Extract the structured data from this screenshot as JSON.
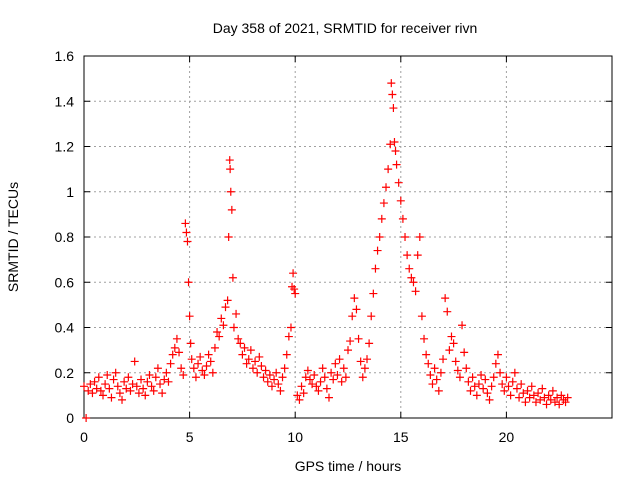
{
  "chart_data": {
    "type": "scatter",
    "title": "Day 358 of 2021, SRMTID for receiver rivn",
    "xlabel": "GPS time / hours",
    "ylabel": "SRMTID / TECUs",
    "xlim": [
      0,
      25
    ],
    "ylim": [
      0,
      1.6
    ],
    "xticks": [
      0,
      5,
      10,
      15,
      20
    ],
    "xtick_labels": [
      "0",
      "5",
      "10",
      "15",
      "20"
    ],
    "yticks": [
      0,
      0.2,
      0.4,
      0.6,
      0.8,
      1,
      1.2,
      1.4,
      1.6
    ],
    "ytick_labels": [
      "0",
      "0.2",
      "0.4",
      "0.6",
      "0.8",
      "1",
      "1.2",
      "1.4",
      "1.6"
    ],
    "grid": true,
    "marker": "+",
    "color": "#ff0000",
    "series": [
      {
        "name": "SRMTID",
        "points": [
          [
            0.0,
            0.14
          ],
          [
            0.1,
            0.0
          ],
          [
            0.2,
            0.12
          ],
          [
            0.3,
            0.15
          ],
          [
            0.4,
            0.11
          ],
          [
            0.5,
            0.16
          ],
          [
            0.6,
            0.13
          ],
          [
            0.7,
            0.18
          ],
          [
            0.8,
            0.12
          ],
          [
            0.9,
            0.1
          ],
          [
            1.0,
            0.15
          ],
          [
            1.1,
            0.19
          ],
          [
            1.2,
            0.13
          ],
          [
            1.3,
            0.09
          ],
          [
            1.4,
            0.17
          ],
          [
            1.5,
            0.2
          ],
          [
            1.6,
            0.14
          ],
          [
            1.7,
            0.11
          ],
          [
            1.8,
            0.08
          ],
          [
            1.9,
            0.16
          ],
          [
            2.0,
            0.13
          ],
          [
            2.1,
            0.18
          ],
          [
            2.2,
            0.12
          ],
          [
            2.3,
            0.15
          ],
          [
            2.4,
            0.25
          ],
          [
            2.5,
            0.14
          ],
          [
            2.6,
            0.11
          ],
          [
            2.7,
            0.17
          ],
          [
            2.8,
            0.13
          ],
          [
            2.9,
            0.1
          ],
          [
            3.0,
            0.16
          ],
          [
            3.1,
            0.19
          ],
          [
            3.2,
            0.14
          ],
          [
            3.3,
            0.12
          ],
          [
            3.4,
            0.18
          ],
          [
            3.5,
            0.22
          ],
          [
            3.6,
            0.15
          ],
          [
            3.7,
            0.11
          ],
          [
            3.8,
            0.17
          ],
          [
            3.9,
            0.2
          ],
          [
            4.0,
            0.16
          ],
          [
            4.1,
            0.24
          ],
          [
            4.2,
            0.28
          ],
          [
            4.3,
            0.31
          ],
          [
            4.4,
            0.35
          ],
          [
            4.5,
            0.29
          ],
          [
            4.6,
            0.22
          ],
          [
            4.7,
            0.19
          ],
          [
            4.8,
            0.86
          ],
          [
            4.85,
            0.82
          ],
          [
            4.9,
            0.78
          ],
          [
            4.95,
            0.6
          ],
          [
            5.0,
            0.45
          ],
          [
            5.05,
            0.33
          ],
          [
            5.1,
            0.26
          ],
          [
            5.2,
            0.22
          ],
          [
            5.3,
            0.18
          ],
          [
            5.4,
            0.24
          ],
          [
            5.5,
            0.27
          ],
          [
            5.6,
            0.21
          ],
          [
            5.7,
            0.19
          ],
          [
            5.8,
            0.23
          ],
          [
            5.9,
            0.28
          ],
          [
            6.0,
            0.25
          ],
          [
            6.1,
            0.2
          ],
          [
            6.2,
            0.31
          ],
          [
            6.3,
            0.38
          ],
          [
            6.4,
            0.36
          ],
          [
            6.5,
            0.44
          ],
          [
            6.6,
            0.41
          ],
          [
            6.7,
            0.49
          ],
          [
            6.8,
            0.52
          ],
          [
            6.85,
            0.8
          ],
          [
            6.9,
            1.14
          ],
          [
            6.92,
            1.1
          ],
          [
            6.95,
            1.0
          ],
          [
            7.0,
            0.92
          ],
          [
            7.05,
            0.62
          ],
          [
            7.1,
            0.4
          ],
          [
            7.2,
            0.46
          ],
          [
            7.3,
            0.35
          ],
          [
            7.4,
            0.33
          ],
          [
            7.5,
            0.28
          ],
          [
            7.6,
            0.31
          ],
          [
            7.7,
            0.24
          ],
          [
            7.8,
            0.26
          ],
          [
            7.9,
            0.3
          ],
          [
            8.0,
            0.22
          ],
          [
            8.1,
            0.25
          ],
          [
            8.2,
            0.2
          ],
          [
            8.3,
            0.27
          ],
          [
            8.4,
            0.23
          ],
          [
            8.5,
            0.18
          ],
          [
            8.6,
            0.21
          ],
          [
            8.7,
            0.16
          ],
          [
            8.8,
            0.19
          ],
          [
            8.9,
            0.14
          ],
          [
            9.0,
            0.17
          ],
          [
            9.1,
            0.2
          ],
          [
            9.2,
            0.15
          ],
          [
            9.3,
            0.12
          ],
          [
            9.4,
            0.18
          ],
          [
            9.5,
            0.22
          ],
          [
            9.6,
            0.28
          ],
          [
            9.7,
            0.36
          ],
          [
            9.8,
            0.4
          ],
          [
            9.85,
            0.58
          ],
          [
            9.9,
            0.64
          ],
          [
            9.95,
            0.57
          ],
          [
            10.0,
            0.55
          ],
          [
            10.1,
            0.1
          ],
          [
            10.2,
            0.08
          ],
          [
            10.3,
            0.14
          ],
          [
            10.4,
            0.11
          ],
          [
            10.5,
            0.18
          ],
          [
            10.6,
            0.21
          ],
          [
            10.7,
            0.17
          ],
          [
            10.8,
            0.15
          ],
          [
            10.9,
            0.19
          ],
          [
            11.0,
            0.14
          ],
          [
            11.1,
            0.12
          ],
          [
            11.2,
            0.16
          ],
          [
            11.3,
            0.22
          ],
          [
            11.4,
            0.18
          ],
          [
            11.5,
            0.13
          ],
          [
            11.6,
            0.09
          ],
          [
            11.7,
            0.2
          ],
          [
            11.8,
            0.17
          ],
          [
            11.9,
            0.24
          ],
          [
            12.0,
            0.19
          ],
          [
            12.1,
            0.26
          ],
          [
            12.2,
            0.16
          ],
          [
            12.3,
            0.22
          ],
          [
            12.4,
            0.18
          ],
          [
            12.5,
            0.3
          ],
          [
            12.6,
            0.34
          ],
          [
            12.7,
            0.45
          ],
          [
            12.8,
            0.53
          ],
          [
            12.9,
            0.48
          ],
          [
            13.0,
            0.35
          ],
          [
            13.1,
            0.25
          ],
          [
            13.2,
            0.18
          ],
          [
            13.3,
            0.22
          ],
          [
            13.4,
            0.26
          ],
          [
            13.5,
            0.33
          ],
          [
            13.6,
            0.45
          ],
          [
            13.7,
            0.55
          ],
          [
            13.8,
            0.66
          ],
          [
            13.9,
            0.74
          ],
          [
            14.0,
            0.8
          ],
          [
            14.1,
            0.88
          ],
          [
            14.2,
            0.95
          ],
          [
            14.3,
            1.02
          ],
          [
            14.4,
            1.1
          ],
          [
            14.5,
            1.21
          ],
          [
            14.55,
            1.48
          ],
          [
            14.6,
            1.43
          ],
          [
            14.65,
            1.37
          ],
          [
            14.7,
            1.22
          ],
          [
            14.75,
            1.18
          ],
          [
            14.8,
            1.12
          ],
          [
            14.9,
            1.04
          ],
          [
            15.0,
            0.96
          ],
          [
            15.1,
            0.88
          ],
          [
            15.2,
            0.8
          ],
          [
            15.3,
            0.72
          ],
          [
            15.4,
            0.66
          ],
          [
            15.5,
            0.62
          ],
          [
            15.6,
            0.6
          ],
          [
            15.7,
            0.56
          ],
          [
            15.8,
            0.72
          ],
          [
            15.9,
            0.8
          ],
          [
            16.0,
            0.45
          ],
          [
            16.1,
            0.35
          ],
          [
            16.2,
            0.28
          ],
          [
            16.3,
            0.24
          ],
          [
            16.4,
            0.19
          ],
          [
            16.5,
            0.15
          ],
          [
            16.6,
            0.22
          ],
          [
            16.7,
            0.17
          ],
          [
            16.8,
            0.12
          ],
          [
            16.9,
            0.2
          ],
          [
            17.0,
            0.26
          ],
          [
            17.1,
            0.53
          ],
          [
            17.2,
            0.47
          ],
          [
            17.3,
            0.3
          ],
          [
            17.4,
            0.36
          ],
          [
            17.5,
            0.33
          ],
          [
            17.6,
            0.25
          ],
          [
            17.7,
            0.21
          ],
          [
            17.8,
            0.18
          ],
          [
            17.9,
            0.41
          ],
          [
            18.0,
            0.29
          ],
          [
            18.1,
            0.22
          ],
          [
            18.2,
            0.16
          ],
          [
            18.3,
            0.12
          ],
          [
            18.4,
            0.18
          ],
          [
            18.5,
            0.14
          ],
          [
            18.6,
            0.1
          ],
          [
            18.7,
            0.15
          ],
          [
            18.8,
            0.19
          ],
          [
            18.9,
            0.13
          ],
          [
            19.0,
            0.17
          ],
          [
            19.1,
            0.11
          ],
          [
            19.2,
            0.08
          ],
          [
            19.3,
            0.14
          ],
          [
            19.4,
            0.18
          ],
          [
            19.5,
            0.24
          ],
          [
            19.6,
            0.28
          ],
          [
            19.7,
            0.2
          ],
          [
            19.8,
            0.15
          ],
          [
            19.9,
            0.12
          ],
          [
            20.0,
            0.18
          ],
          [
            20.1,
            0.14
          ],
          [
            20.2,
            0.1
          ],
          [
            20.3,
            0.16
          ],
          [
            20.4,
            0.2
          ],
          [
            20.5,
            0.13
          ],
          [
            20.6,
            0.09
          ],
          [
            20.7,
            0.15
          ],
          [
            20.8,
            0.11
          ],
          [
            20.9,
            0.07
          ],
          [
            21.0,
            0.12
          ],
          [
            21.1,
            0.09
          ],
          [
            21.2,
            0.14
          ],
          [
            21.3,
            0.1
          ],
          [
            21.4,
            0.07
          ],
          [
            21.5,
            0.11
          ],
          [
            21.6,
            0.08
          ],
          [
            21.7,
            0.13
          ],
          [
            21.8,
            0.09
          ],
          [
            21.9,
            0.06
          ],
          [
            22.0,
            0.1
          ],
          [
            22.1,
            0.08
          ],
          [
            22.2,
            0.12
          ],
          [
            22.3,
            0.07
          ],
          [
            22.4,
            0.09
          ],
          [
            22.5,
            0.06
          ],
          [
            22.6,
            0.1
          ],
          [
            22.7,
            0.08
          ],
          [
            22.8,
            0.07
          ],
          [
            22.9,
            0.09
          ]
        ]
      }
    ]
  }
}
